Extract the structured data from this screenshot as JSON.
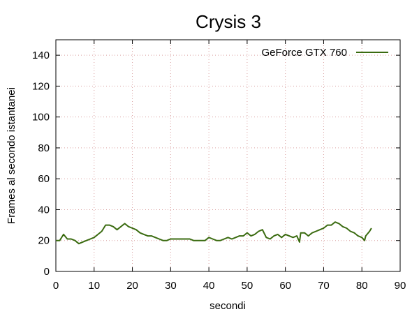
{
  "chart_data": {
    "type": "line",
    "title": "Crysis 3",
    "xlabel": "secondi",
    "ylabel": "Frames al secondo istantanei",
    "xlim": [
      0,
      90
    ],
    "ylim": [
      0,
      150
    ],
    "xticks": [
      0,
      10,
      20,
      30,
      40,
      50,
      60,
      70,
      80,
      90
    ],
    "yticks": [
      0,
      20,
      40,
      60,
      80,
      100,
      120,
      140
    ],
    "grid": true,
    "legend_position": "top-right",
    "series": [
      {
        "name": "GeForce GTX 760",
        "color": "#3a6b10",
        "x": [
          0,
          1,
          2,
          3,
          4,
          5,
          6,
          7,
          8,
          9,
          10,
          11,
          12,
          13,
          14,
          15,
          16,
          17,
          18,
          19,
          20,
          21,
          22,
          23,
          24,
          25,
          26,
          27,
          28,
          29,
          30,
          31,
          32,
          33,
          34,
          35,
          36,
          37,
          38,
          39,
          40,
          41,
          42,
          43,
          44,
          45,
          46,
          47,
          48,
          49,
          50,
          51,
          52,
          53,
          54,
          55,
          56,
          57,
          58,
          59,
          60,
          61,
          62,
          63,
          63.7,
          64,
          65,
          66,
          67,
          68,
          69,
          70,
          71,
          72,
          73,
          74,
          75,
          76,
          77,
          78,
          79,
          80,
          80.7,
          81,
          82,
          82.5
        ],
        "y": [
          20,
          20,
          24,
          21,
          21,
          20,
          18,
          19,
          20,
          21,
          22,
          24,
          26,
          30,
          30,
          29,
          27,
          29,
          31,
          29,
          28,
          27,
          25,
          24,
          23,
          23,
          22,
          21,
          20,
          20,
          21,
          21,
          21,
          21,
          21,
          21,
          20,
          20,
          20,
          20,
          22,
          21,
          20,
          20,
          21,
          22,
          21,
          22,
          23,
          23,
          25,
          23,
          24,
          26,
          27,
          22,
          21,
          23,
          24,
          22,
          24,
          23,
          22,
          23,
          19,
          25,
          25,
          23,
          25,
          26,
          27,
          28,
          30,
          30,
          32,
          31,
          29,
          28,
          26,
          25,
          23,
          22,
          20,
          23,
          26,
          28
        ]
      }
    ]
  }
}
